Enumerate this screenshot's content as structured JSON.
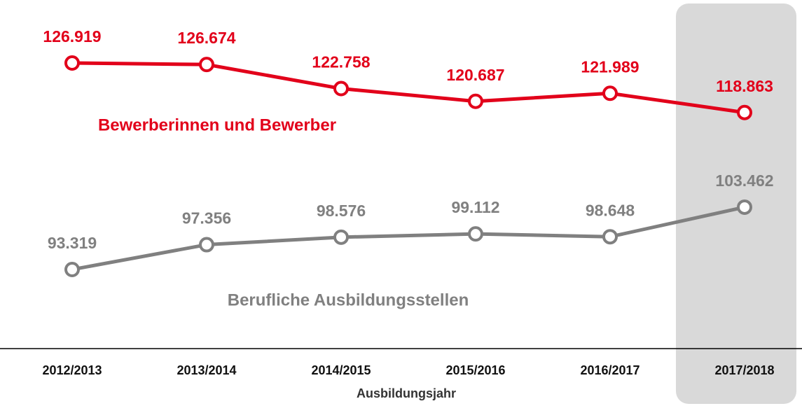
{
  "chart_data": {
    "type": "line",
    "x_label": "Ausbildungsjahr",
    "categories": [
      "2012/2013",
      "2013/2014",
      "2014/2015",
      "2015/2016",
      "2016/2017",
      "2017/2018"
    ],
    "series": [
      {
        "name": "Bewerberinnen und Bewerber",
        "color": "#e2001a",
        "values": [
          126919,
          126674,
          122758,
          120687,
          121989,
          118863
        ],
        "value_labels": [
          "126.919",
          "126.674",
          "122.758",
          "120.687",
          "121.989",
          "118.863"
        ]
      },
      {
        "name": "Berufliche Ausbildungsstellen",
        "color": "#808080",
        "values": [
          93319,
          97356,
          98576,
          99112,
          98648,
          103462
        ],
        "value_labels": [
          "93.319",
          "97.356",
          "98.576",
          "99.112",
          "98.648",
          "103.462"
        ]
      }
    ]
  }
}
